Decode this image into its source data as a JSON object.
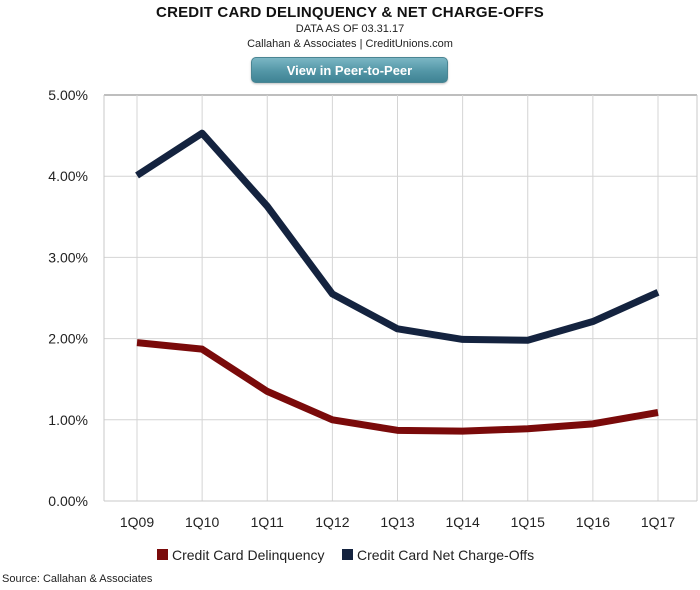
{
  "header": {
    "title": "CREDIT CARD DELINQUENCY & NET CHARGE-OFFS",
    "subtitle": "DATA AS OF 03.31.17",
    "credit": "Callahan & Associates | CreditUnions.com",
    "button_label": "View in Peer-to-Peer"
  },
  "footer": {
    "source": "Source: Callahan & Associates"
  },
  "chart_data": {
    "type": "line",
    "title": "CREDIT CARD DELINQUENCY & NET CHARGE-OFFS",
    "categories": [
      "1Q09",
      "1Q10",
      "1Q11",
      "1Q12",
      "1Q13",
      "1Q14",
      "1Q15",
      "1Q16",
      "1Q17"
    ],
    "series": [
      {
        "name": "Credit Card Delinquency",
        "color": "#7a0a0a",
        "values": [
          1.95,
          1.87,
          1.35,
          1.0,
          0.87,
          0.86,
          0.89,
          0.95,
          1.09
        ]
      },
      {
        "name": "Credit Card Net Charge-Offs",
        "color": "#14233f",
        "values": [
          4.01,
          4.53,
          3.63,
          2.55,
          2.12,
          1.99,
          1.98,
          2.21,
          2.57
        ]
      }
    ],
    "ylim": [
      0,
      5
    ],
    "yticks": [
      "0.00%",
      "1.00%",
      "2.00%",
      "3.00%",
      "4.00%",
      "5.00%"
    ],
    "xlabel": "",
    "ylabel": "",
    "grid": true,
    "legend_position": "bottom-center"
  }
}
